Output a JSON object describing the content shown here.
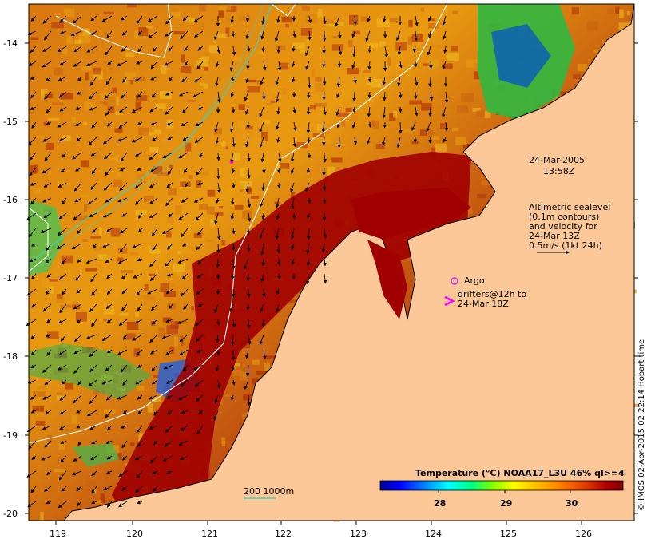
{
  "map": {
    "timestamp": {
      "date": "24-Mar-2005",
      "time": "13:58Z"
    },
    "altimetry_note": [
      "Altimetric sealevel",
      "(0.1m contours)",
      "and velocity for",
      "24-Mar 13Z",
      "0.5m/s (1kt 24h)"
    ],
    "legend": {
      "argo_label": "Argo",
      "drifters_label": [
        "drifters@12h to",
        "24-Mar 18Z"
      ],
      "bathymetry_label": "200  1000m"
    },
    "colorbar": {
      "title": "Temperature (°C) NOAA17_L3U 46% ql>=4",
      "ticks": [
        "28",
        "29",
        "30"
      ],
      "stops": [
        "#000090",
        "#0000ff",
        "#0080ff",
        "#00ffff",
        "#00ff80",
        "#80ff00",
        "#ffff00",
        "#ffc000",
        "#ff8000",
        "#e04000",
        "#b00000",
        "#800000"
      ]
    },
    "credit": "© IMOS 02-Apr-2015 02:22:14 Hobart time",
    "axes": {
      "lon_ticks": [
        "119",
        "120",
        "121",
        "122",
        "123",
        "124",
        "125",
        "126"
      ],
      "lat_ticks": [
        "-14",
        "-15",
        "-16",
        "-17",
        "-18",
        "-19",
        "-20"
      ]
    },
    "colors": {
      "land": "#fcc898",
      "warm": "#a00000",
      "contour": "#ffffff",
      "isobath": "#40d0c0",
      "argo": "#e020e0",
      "drifter": "#ff00ff"
    }
  }
}
